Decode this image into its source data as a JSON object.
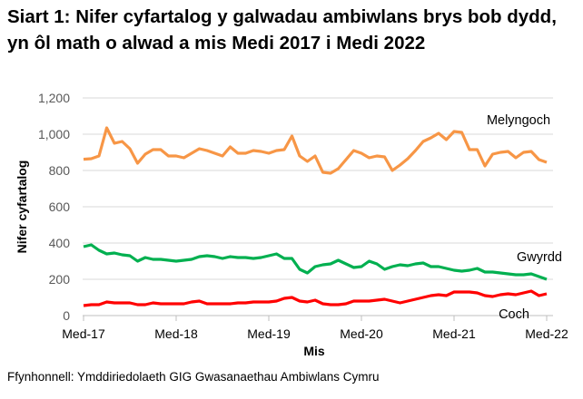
{
  "chart_data": {
    "type": "line",
    "title": "Siart 1: Nifer cyfartalog y galwadau ambiwlans brys bob dydd, yn ôl math o alwad a mis Medi 2017 i Medi 2022",
    "xlabel": "Mis",
    "ylabel": "Nifer cyfartalog",
    "ylim": [
      0,
      1200
    ],
    "yticks": [
      "0",
      "200",
      "400",
      "600",
      "800",
      "1,000",
      "1,200"
    ],
    "xticks": [
      "Med-17",
      "Med-18",
      "Med-19",
      "Med-20",
      "Med-21",
      "Med-22"
    ],
    "x_start": "Med-17",
    "grid": true,
    "legend": "labels-at-line-ends",
    "series": [
      {
        "name": "Melyngoch",
        "color": "#F79646",
        "values": [
          862,
          865,
          880,
          1035,
          950,
          960,
          920,
          840,
          890,
          915,
          915,
          880,
          880,
          870,
          895,
          920,
          910,
          895,
          880,
          930,
          895,
          895,
          910,
          905,
          895,
          910,
          915,
          990,
          880,
          850,
          880,
          790,
          785,
          810,
          860,
          910,
          895,
          870,
          880,
          875,
          800,
          830,
          865,
          910,
          960,
          980,
          1005,
          970,
          1015,
          1010,
          915,
          915,
          825,
          890,
          900,
          905,
          870,
          900,
          905,
          860,
          845
        ]
      },
      {
        "name": "Gwyrdd",
        "color": "#00B050",
        "values": [
          380,
          390,
          360,
          340,
          345,
          335,
          330,
          300,
          320,
          310,
          310,
          305,
          300,
          305,
          310,
          325,
          330,
          325,
          315,
          325,
          320,
          320,
          315,
          320,
          330,
          340,
          315,
          315,
          255,
          235,
          270,
          280,
          285,
          305,
          285,
          265,
          270,
          300,
          285,
          255,
          270,
          280,
          275,
          285,
          290,
          270,
          270,
          260,
          250,
          245,
          250,
          260,
          240,
          240,
          235,
          230,
          225,
          225,
          230,
          215,
          200
        ]
      },
      {
        "name": "Coch",
        "color": "#FF0000",
        "values": [
          55,
          60,
          60,
          75,
          70,
          70,
          70,
          60,
          60,
          70,
          65,
          65,
          65,
          65,
          75,
          80,
          65,
          65,
          65,
          65,
          70,
          70,
          75,
          75,
          75,
          80,
          95,
          100,
          80,
          75,
          85,
          65,
          60,
          60,
          65,
          80,
          80,
          80,
          85,
          90,
          80,
          70,
          80,
          90,
          100,
          110,
          115,
          110,
          130,
          130,
          130,
          125,
          110,
          105,
          115,
          120,
          115,
          125,
          135,
          110,
          120
        ]
      }
    ],
    "source": "Ffynhonnell: Ymddiriedolaeth GIG Gwasanaethau Ambiwlans Cymru"
  }
}
